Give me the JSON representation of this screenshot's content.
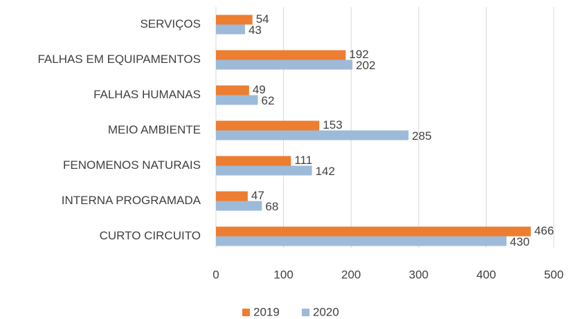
{
  "chart_data": {
    "type": "bar",
    "orientation": "horizontal",
    "categories": [
      "SERVIÇOS",
      "FALHAS EM EQUIPAMENTOS",
      "FALHAS HUMANAS",
      "MEIO AMBIENTE",
      "FENOMENOS NATURAIS",
      "INTERNA PROGRAMADA",
      "CURTO CIRCUITO"
    ],
    "series": [
      {
        "name": "2019",
        "color": "#ed7d31",
        "values": [
          54,
          192,
          49,
          153,
          111,
          47,
          466
        ]
      },
      {
        "name": "2020",
        "color": "#9dbad9",
        "values": [
          43,
          202,
          62,
          285,
          142,
          68,
          430
        ]
      }
    ],
    "xlim": [
      0,
      500
    ],
    "xticks": [
      0,
      100,
      200,
      300,
      400,
      500
    ],
    "grid": true,
    "legend": "bottom"
  }
}
